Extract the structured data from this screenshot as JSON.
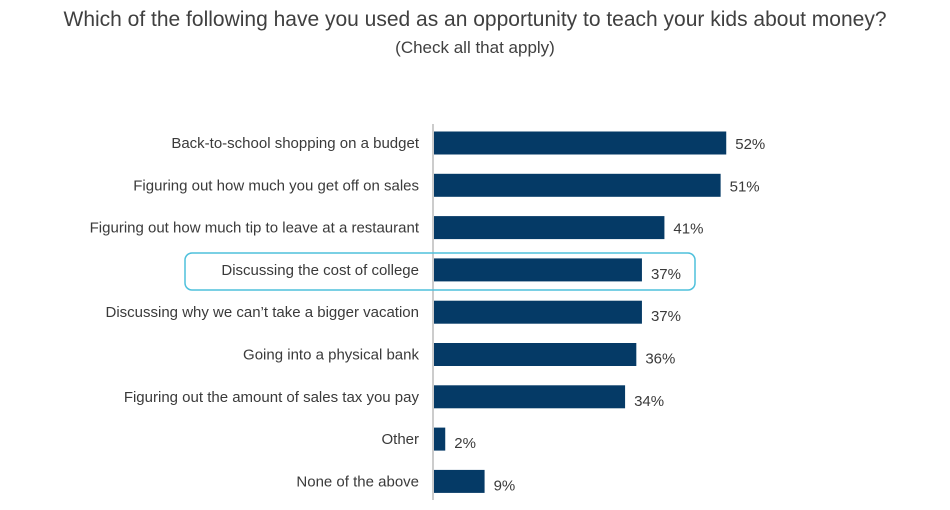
{
  "chart_data": {
    "type": "bar",
    "orientation": "horizontal",
    "title": "Which of the following have you used as an opportunity to teach your kids about money?",
    "subtitle": "(Check all that apply)",
    "categories": [
      "Back-to-school shopping on a budget",
      "Figuring out how much you get off on sales",
      "Figuring out how much tip to leave at a restaurant",
      "Discussing the cost of college",
      "Discussing why we can’t take a bigger vacation",
      "Going into a physical bank",
      "Figuring out the amount of sales tax you pay",
      "Other",
      "None of the above"
    ],
    "values": [
      52,
      51,
      41,
      37,
      37,
      36,
      34,
      2,
      9
    ],
    "value_labels": [
      "52%",
      "51%",
      "41%",
      "37%",
      "37%",
      "36%",
      "34%",
      "2%",
      "9%"
    ],
    "highlighted_category": "Discussing the cost of college",
    "xlim": [
      0,
      100
    ],
    "grid": false,
    "legend": "none",
    "colors": {
      "bar": "#053a66",
      "highlight_outline": "#4ec0dc",
      "axis": "#999999"
    }
  }
}
